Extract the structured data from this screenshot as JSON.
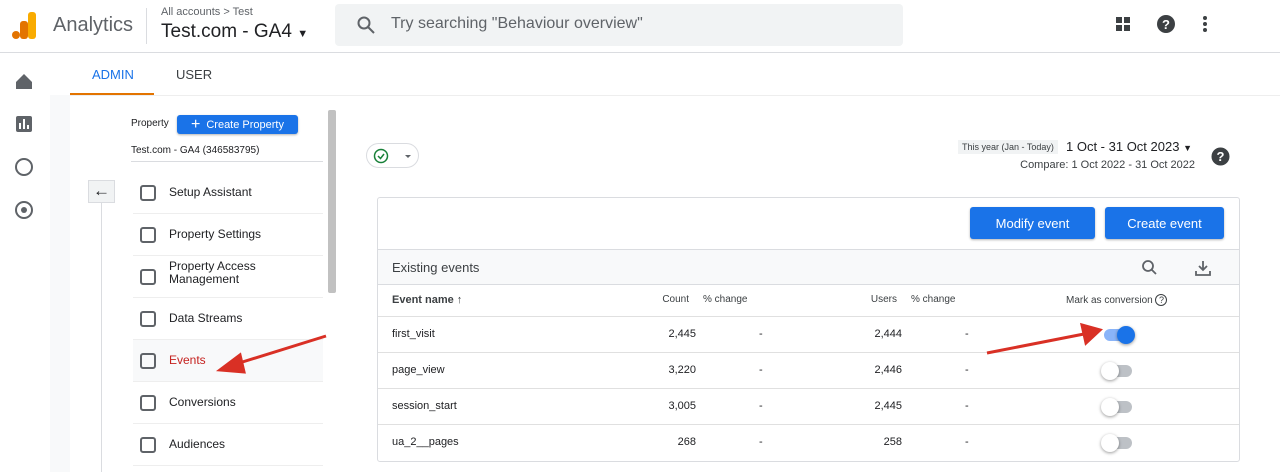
{
  "header": {
    "product": "Analytics",
    "breadcrumb": [
      "All accounts",
      "Test"
    ],
    "property": "Test.com - GA4",
    "search_placeholder": "Try searching \"Behaviour overview\""
  },
  "tabs": [
    "ADMIN",
    "USER"
  ],
  "property_panel": {
    "label": "Property",
    "create_button": "Create Property",
    "property_name": "Test.com - GA4 (346583795)",
    "items": [
      "Setup Assistant",
      "Property Settings",
      "Property Access Management",
      "Data Streams",
      "Events",
      "Conversions",
      "Audiences"
    ]
  },
  "date_range": {
    "preset": "This year (Jan - Today)",
    "range": "1 Oct - 31 Oct 2023",
    "compare": "Compare: 1 Oct 2022 - 31 Oct 2022"
  },
  "events_table": {
    "buttons": [
      "Modify event",
      "Create event"
    ],
    "title": "Existing events",
    "columns": [
      "Event name",
      "Count",
      "% change",
      "Users",
      "% change",
      "Mark as conversion"
    ],
    "rows": [
      {
        "name": "first_visit",
        "count": "2,445",
        "count_change": "-",
        "users": "2,444",
        "users_change": "-",
        "conversion": true
      },
      {
        "name": "page_view",
        "count": "3,220",
        "count_change": "-",
        "users": "2,446",
        "users_change": "-",
        "conversion": false
      },
      {
        "name": "session_start",
        "count": "3,005",
        "count_change": "-",
        "users": "2,445",
        "users_change": "-",
        "conversion": false
      },
      {
        "name": "ua_2__pages",
        "count": "268",
        "count_change": "-",
        "users": "258",
        "users_change": "-",
        "conversion": false
      }
    ]
  }
}
